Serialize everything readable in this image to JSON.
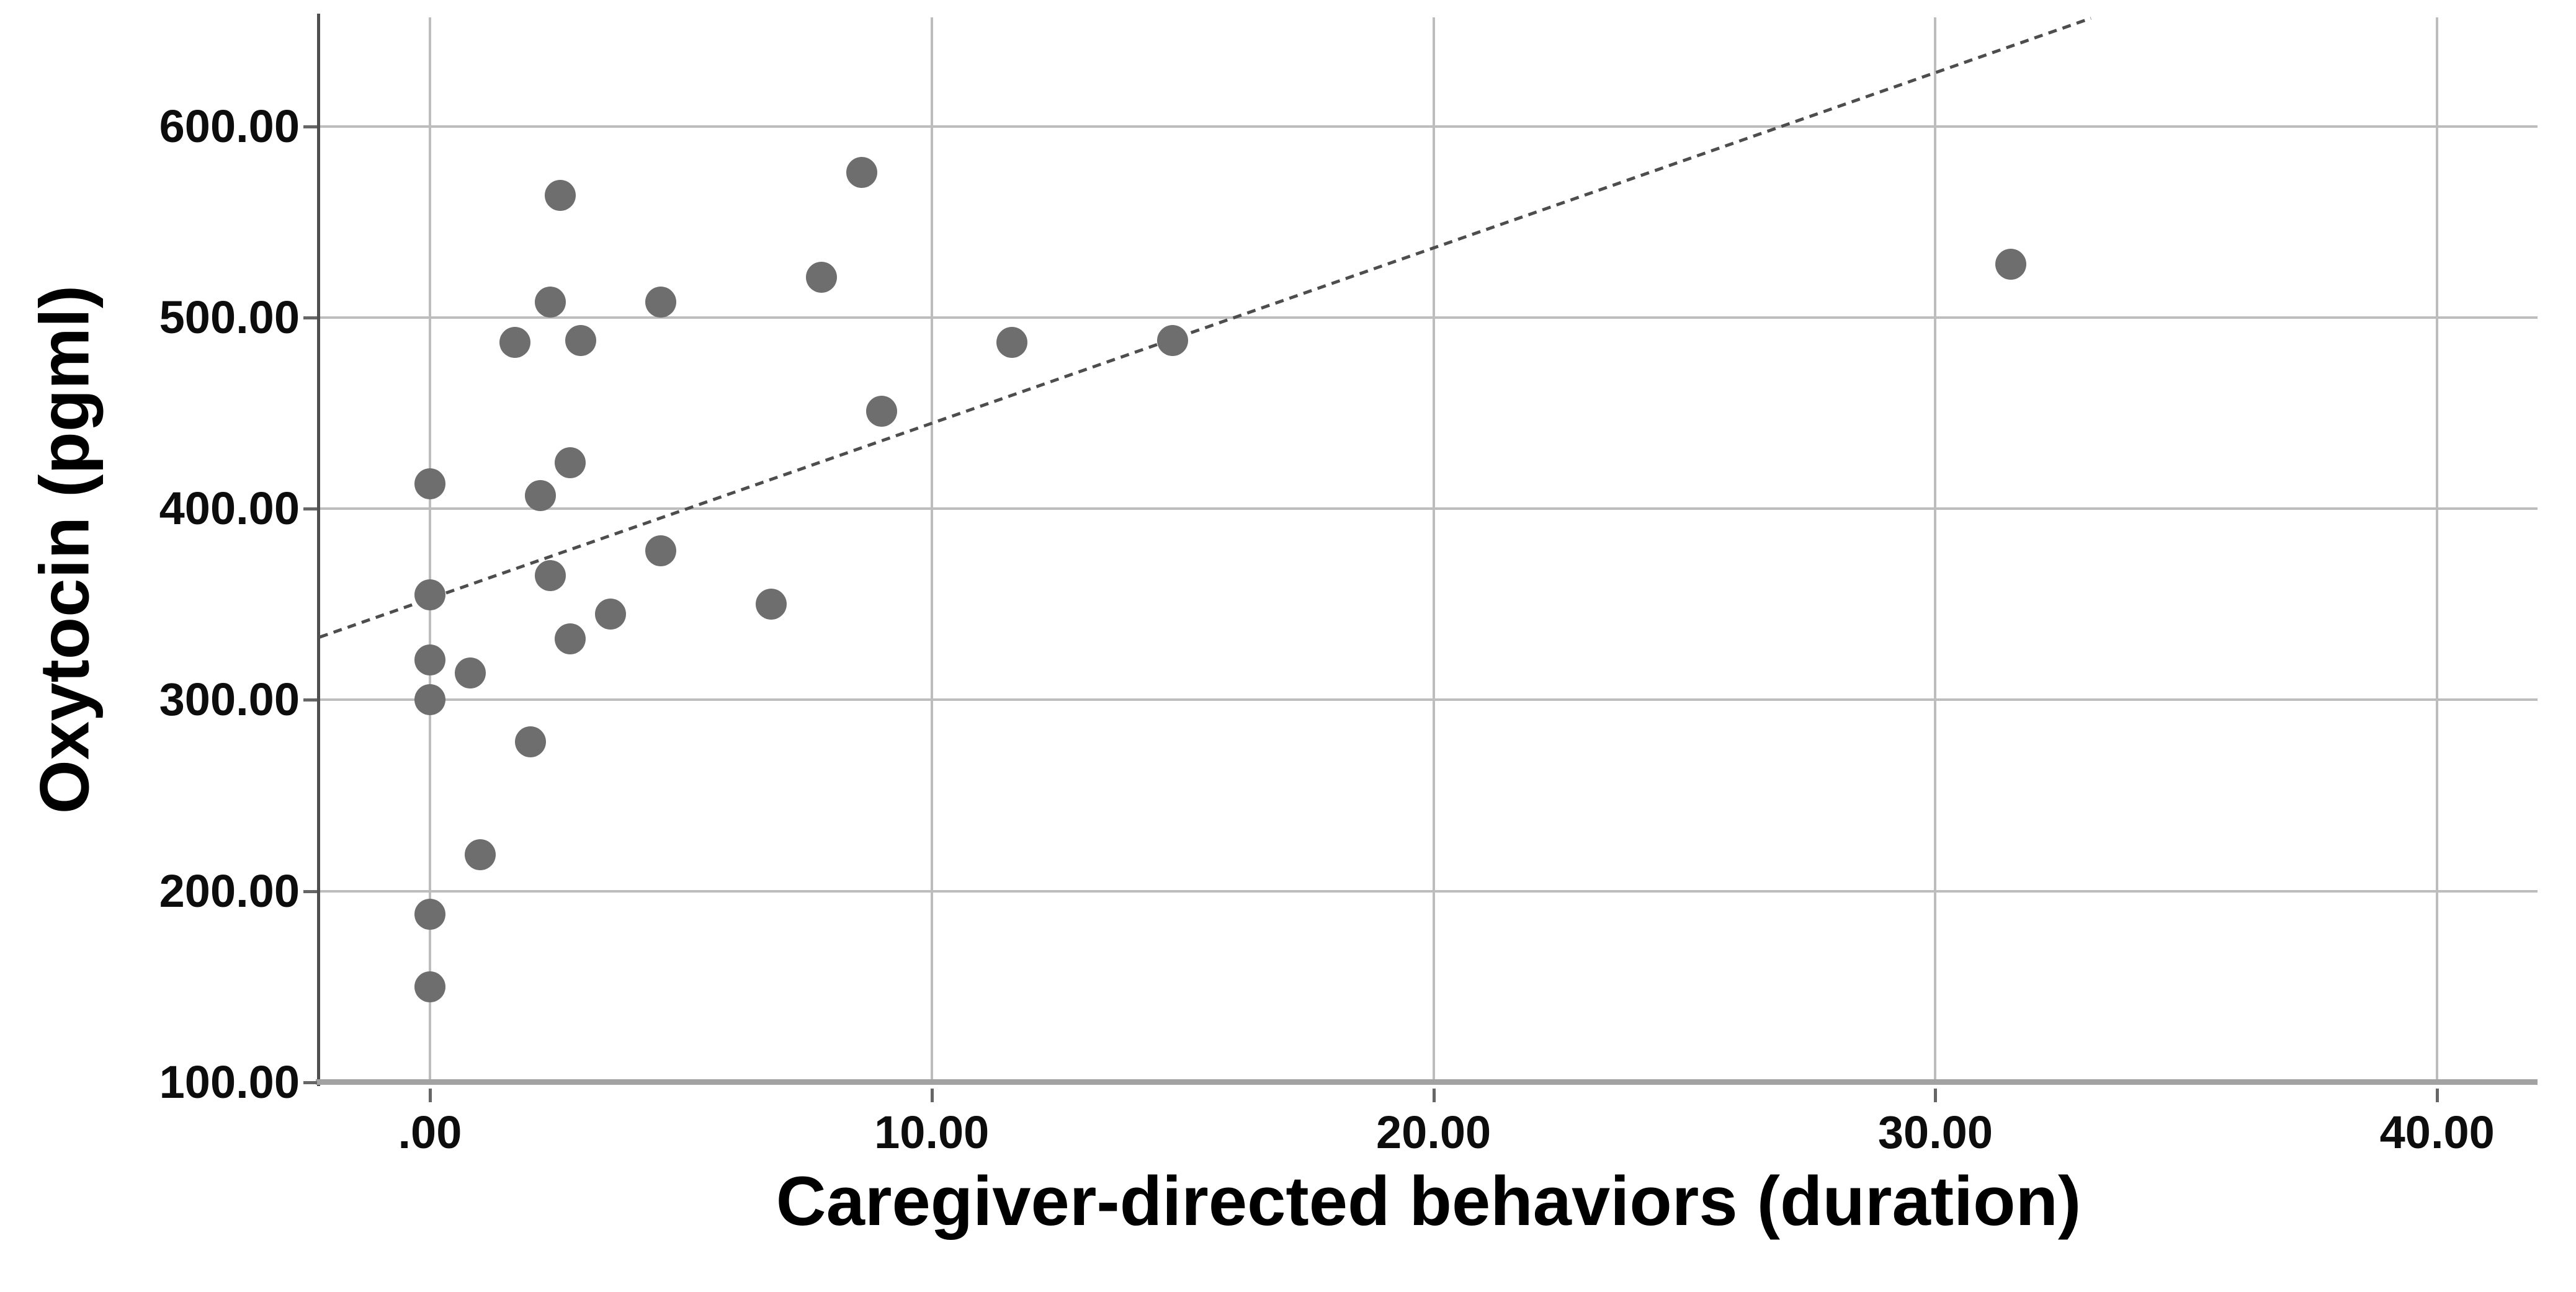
{
  "chart_data": {
    "type": "scatter",
    "title": "",
    "xlabel": "Caregiver-directed behaviors (duration)",
    "ylabel": "Oxytocin (pgml)",
    "xlim": [
      -2.2,
      42.0
    ],
    "ylim": [
      100,
      657
    ],
    "grid": true,
    "legend_position": "none",
    "x_ticks": [
      {
        "value": 0,
        "label": ".00"
      },
      {
        "value": 10,
        "label": "10.00"
      },
      {
        "value": 20,
        "label": "20.00"
      },
      {
        "value": 30,
        "label": "30.00"
      },
      {
        "value": 40,
        "label": "40.00"
      }
    ],
    "y_ticks": [
      {
        "value": 100,
        "label": "100.00"
      },
      {
        "value": 200,
        "label": "200.00"
      },
      {
        "value": 300,
        "label": "300.00"
      },
      {
        "value": 400,
        "label": "400.00"
      },
      {
        "value": 500,
        "label": "500.00"
      },
      {
        "value": 600,
        "label": "600.00"
      }
    ],
    "points": [
      [
        0,
        150
      ],
      [
        0,
        188
      ],
      [
        1.0,
        219
      ],
      [
        2.0,
        278
      ],
      [
        0,
        300
      ],
      [
        0.8,
        314
      ],
      [
        0,
        321
      ],
      [
        2.8,
        332
      ],
      [
        3.6,
        345
      ],
      [
        6.8,
        350
      ],
      [
        0,
        355
      ],
      [
        2.4,
        365
      ],
      [
        4.6,
        378
      ],
      [
        2.2,
        407
      ],
      [
        0,
        413
      ],
      [
        2.8,
        424
      ],
      [
        9.0,
        451
      ],
      [
        1.7,
        487
      ],
      [
        11.6,
        487
      ],
      [
        14.8,
        488
      ],
      [
        3.0,
        488
      ],
      [
        2.4,
        508
      ],
      [
        4.6,
        508
      ],
      [
        7.8,
        521
      ],
      [
        31.5,
        528
      ],
      [
        2.6,
        564
      ],
      [
        8.6,
        576
      ]
    ],
    "fit_line": {
      "slope": 9.17,
      "intercept": 353.0,
      "x_start": -2.2,
      "x_end": 33.1
    },
    "colors": {
      "point": "#6e6e6e",
      "fit_line": "#4d4d4d",
      "gridline": "#bdbdbd",
      "x_axis": "#a2a2a2",
      "y_axis": "#4f4f4f",
      "tick": "#666666",
      "text": "#0d0d0d",
      "background": "#ffffff"
    }
  }
}
